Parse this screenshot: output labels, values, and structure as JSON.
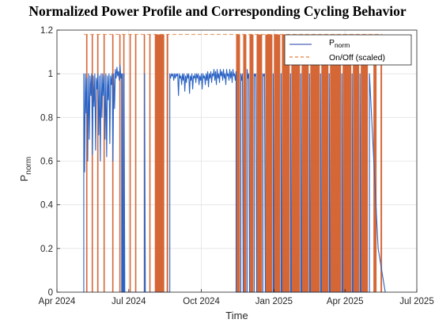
{
  "chart_data": {
    "type": "line",
    "title": "Normalized Power Profile and Corresponding Cycling Behavior",
    "xlabel": "Time",
    "ylabel_main": "P",
    "ylabel_sub": "norm",
    "xlim": [
      "2024-04-01",
      "2025-07-01"
    ],
    "ylim": [
      0,
      1.2
    ],
    "x_ticks": [
      {
        "date": "2024-04-01",
        "label": "Apr 2024"
      },
      {
        "date": "2024-07-01",
        "label": "Jul 2024"
      },
      {
        "date": "2024-10-01",
        "label": "Oct 2024"
      },
      {
        "date": "2025-01-01",
        "label": "Jan 2025"
      },
      {
        "date": "2025-04-01",
        "label": "Apr 2025"
      },
      {
        "date": "2025-07-01",
        "label": "Jul 2025"
      }
    ],
    "y_ticks": [
      {
        "value": 0,
        "label": "0"
      },
      {
        "value": 0.2,
        "label": "0.2"
      },
      {
        "value": 0.4,
        "label": "0.4"
      },
      {
        "value": 0.6,
        "label": "0.6"
      },
      {
        "value": 0.8,
        "label": "0.8"
      },
      {
        "value": 1,
        "label": "1"
      },
      {
        "value": 1.2,
        "label": "1.2"
      }
    ],
    "grid": true,
    "legend": {
      "placement": "top-right",
      "entries": [
        {
          "main": "P",
          "sub": "norm",
          "style": "solid",
          "color": "#4a63b8"
        },
        {
          "main": "On/Off (scaled)",
          "sub": "",
          "style": "dashed",
          "color": "#e0803a"
        }
      ]
    },
    "series": [
      {
        "id": "pnorm",
        "color": "#2b63c4",
        "points": [
          [
            "2024-05-05",
            0
          ],
          [
            "2024-05-05",
            1.0
          ],
          [
            "2024-05-06",
            0.55
          ],
          [
            "2024-05-07",
            1.0
          ],
          [
            "2024-05-08",
            0.82
          ],
          [
            "2024-05-09",
            0.98
          ],
          [
            "2024-05-10",
            0.6
          ],
          [
            "2024-05-11",
            1.0
          ],
          [
            "2024-05-12",
            0.7
          ],
          [
            "2024-05-13",
            0.99
          ],
          [
            "2024-05-14",
            0.9
          ],
          [
            "2024-05-15",
            1.0
          ],
          [
            "2024-05-16",
            0.63
          ],
          [
            "2024-05-17",
            0.99
          ],
          [
            "2024-05-18",
            0.85
          ],
          [
            "2024-05-19",
            1.0
          ],
          [
            "2024-05-20",
            0.65
          ],
          [
            "2024-05-21",
            0.98
          ],
          [
            "2024-05-22",
            0.93
          ],
          [
            "2024-05-23",
            1.0
          ],
          [
            "2024-05-24",
            0.72
          ],
          [
            "2024-05-25",
            0.99
          ],
          [
            "2024-05-26",
            0.6
          ],
          [
            "2024-05-27",
            1.0
          ],
          [
            "2024-05-28",
            0.8
          ],
          [
            "2024-05-29",
            1.0
          ],
          [
            "2024-05-30",
            0.9
          ],
          [
            "2024-05-31",
            0.99
          ],
          [
            "2024-06-01",
            0.7
          ],
          [
            "2024-06-02",
            1.0
          ],
          [
            "2024-06-03",
            0.62
          ],
          [
            "2024-06-04",
            0.99
          ],
          [
            "2024-06-05",
            0.88
          ],
          [
            "2024-06-06",
            1.0
          ],
          [
            "2024-06-07",
            0.68
          ],
          [
            "2024-06-08",
            0.99
          ],
          [
            "2024-06-09",
            0.95
          ],
          [
            "2024-06-10",
            1.0
          ],
          [
            "2024-06-11",
            0.6
          ],
          [
            "2024-06-12",
            1.0
          ],
          [
            "2024-06-13",
            0.84
          ],
          [
            "2024-06-14",
            1.02
          ],
          [
            "2024-06-15",
            0.98
          ],
          [
            "2024-06-16",
            1.03
          ],
          [
            "2024-06-17",
            0.99
          ],
          [
            "2024-06-18",
            1.01
          ],
          [
            "2024-06-19",
            0.97
          ],
          [
            "2024-06-20",
            1.04
          ],
          [
            "2024-06-21",
            0.98
          ],
          [
            "2024-06-22",
            1.0
          ],
          [
            "2024-06-22",
            0
          ],
          [
            "2024-06-23",
            0
          ],
          [
            "2024-06-23",
            1.0
          ],
          [
            "2024-06-24",
            0
          ],
          [
            "2024-06-25",
            0
          ],
          [
            "2024-06-25",
            1.0
          ],
          [
            "2024-06-26",
            0
          ],
          [
            "2024-07-21",
            0
          ],
          [
            "2024-07-21",
            1.0
          ],
          [
            "2024-07-22",
            0
          ],
          [
            "2024-08-22",
            0
          ],
          [
            "2024-08-22",
            1.0
          ],
          [
            "2024-08-23",
            0.98
          ],
          [
            "2024-08-24",
            1.0
          ],
          [
            "2024-08-25",
            0.99
          ],
          [
            "2024-08-26",
            1.0
          ],
          [
            "2024-08-27",
            0.97
          ],
          [
            "2024-08-28",
            1.0
          ],
          [
            "2024-08-29",
            0.98
          ],
          [
            "2024-08-30",
            1.0
          ],
          [
            "2024-08-31",
            0.99
          ],
          [
            "2024-09-01",
            1.0
          ],
          [
            "2024-09-02",
            0.9
          ],
          [
            "2024-09-03",
            1.0
          ],
          [
            "2024-09-04",
            0.98
          ],
          [
            "2024-09-05",
            0.99
          ],
          [
            "2024-09-06",
            0.95
          ],
          [
            "2024-09-07",
            1.0
          ],
          [
            "2024-09-08",
            0.97
          ],
          [
            "2024-09-09",
            1.0
          ],
          [
            "2024-09-10",
            0.92
          ],
          [
            "2024-09-11",
            0.99
          ],
          [
            "2024-09-12",
            0.96
          ],
          [
            "2024-09-13",
            1.0
          ],
          [
            "2024-09-14",
            0.98
          ],
          [
            "2024-09-15",
            1.0
          ],
          [
            "2024-09-16",
            0.91
          ],
          [
            "2024-09-17",
            0.99
          ],
          [
            "2024-09-18",
            0.97
          ],
          [
            "2024-09-19",
            1.0
          ],
          [
            "2024-09-20",
            0.93
          ],
          [
            "2024-09-21",
            0.99
          ],
          [
            "2024-09-22",
            0.98
          ],
          [
            "2024-09-23",
            1.0
          ],
          [
            "2024-09-24",
            0.96
          ],
          [
            "2024-09-25",
            1.0
          ],
          [
            "2024-09-26",
            0.98
          ],
          [
            "2024-09-27",
            1.0
          ],
          [
            "2024-09-28",
            0.95
          ],
          [
            "2024-09-29",
            0.99
          ],
          [
            "2024-09-30",
            0.97
          ],
          [
            "2024-10-01",
            1.0
          ],
          [
            "2024-10-02",
            0.93
          ],
          [
            "2024-10-03",
            1.0
          ],
          [
            "2024-10-04",
            0.98
          ],
          [
            "2024-10-05",
            0.99
          ],
          [
            "2024-10-06",
            0.95
          ],
          [
            "2024-10-07",
            1.0
          ],
          [
            "2024-10-08",
            0.97
          ],
          [
            "2024-10-09",
            1.01
          ],
          [
            "2024-10-10",
            0.94
          ],
          [
            "2024-10-11",
            1.0
          ],
          [
            "2024-10-12",
            0.98
          ],
          [
            "2024-10-13",
            1.01
          ],
          [
            "2024-10-14",
            0.96
          ],
          [
            "2024-10-15",
            1.0
          ],
          [
            "2024-10-16",
            0.99
          ],
          [
            "2024-10-17",
            1.02
          ],
          [
            "2024-10-18",
            0.97
          ],
          [
            "2024-10-19",
            1.01
          ],
          [
            "2024-10-20",
            0.95
          ],
          [
            "2024-10-21",
            1.02
          ],
          [
            "2024-10-22",
            0.98
          ],
          [
            "2024-10-23",
            1.0
          ],
          [
            "2024-10-24",
            0.96
          ],
          [
            "2024-10-25",
            1.02
          ],
          [
            "2024-10-26",
            0.99
          ],
          [
            "2024-10-27",
            1.01
          ],
          [
            "2024-10-28",
            0.97
          ],
          [
            "2024-10-29",
            1.02
          ],
          [
            "2024-10-30",
            0.98
          ],
          [
            "2024-10-31",
            1.0
          ],
          [
            "2024-11-01",
            0.95
          ],
          [
            "2024-11-02",
            1.02
          ],
          [
            "2024-11-03",
            0.99
          ],
          [
            "2024-11-04",
            1.0
          ],
          [
            "2024-11-05",
            0.97
          ],
          [
            "2024-11-06",
            1.02
          ],
          [
            "2024-11-07",
            0.98
          ],
          [
            "2024-11-08",
            1.01
          ],
          [
            "2024-11-09",
            0.96
          ],
          [
            "2024-11-10",
            1.02
          ],
          [
            "2024-11-11",
            0.99
          ],
          [
            "2024-11-12",
            1.0
          ],
          [
            "2024-11-13",
            0.97
          ],
          [
            "2024-11-14",
            1.01
          ],
          [
            "2024-11-14",
            0
          ],
          [
            "2024-11-20",
            0
          ],
          [
            "2024-11-20",
            1.0
          ],
          [
            "2024-11-21",
            0.97
          ],
          [
            "2024-11-22",
            1.0
          ],
          [
            "2024-11-23",
            0
          ],
          [
            "2024-11-28",
            0
          ],
          [
            "2024-11-28",
            1.02
          ],
          [
            "2024-11-29",
            0.98
          ],
          [
            "2024-11-30",
            1.0
          ],
          [
            "2024-12-01",
            0
          ],
          [
            "2024-12-07",
            0
          ],
          [
            "2024-12-07",
            1.0
          ],
          [
            "2024-12-08",
            0.99
          ],
          [
            "2024-12-09",
            1.0
          ],
          [
            "2024-12-10",
            0
          ],
          [
            "2024-12-18",
            0
          ],
          [
            "2024-12-18",
            1.0
          ],
          [
            "2024-12-19",
            0.99
          ],
          [
            "2024-12-20",
            1.0
          ],
          [
            "2024-12-21",
            0
          ],
          [
            "2024-12-31",
            0
          ],
          [
            "2024-12-31",
            1.0
          ],
          [
            "2025-01-01",
            0
          ],
          [
            "2025-01-10",
            0
          ],
          [
            "2025-01-10",
            1.0
          ],
          [
            "2025-01-11",
            0
          ],
          [
            "2025-01-22",
            0
          ],
          [
            "2025-01-22",
            1.0
          ],
          [
            "2025-01-23",
            0
          ],
          [
            "2025-02-04",
            0
          ],
          [
            "2025-02-04",
            1.0
          ],
          [
            "2025-02-05",
            0
          ],
          [
            "2025-02-15",
            0
          ],
          [
            "2025-02-15",
            1.0
          ],
          [
            "2025-02-16",
            0
          ],
          [
            "2025-03-01",
            0
          ],
          [
            "2025-03-01",
            1.0
          ],
          [
            "2025-03-02",
            0
          ],
          [
            "2025-03-12",
            0
          ],
          [
            "2025-03-12",
            1.0
          ],
          [
            "2025-03-13",
            0
          ],
          [
            "2025-03-28",
            0
          ],
          [
            "2025-03-28",
            1.0
          ],
          [
            "2025-03-29",
            0
          ],
          [
            "2025-04-10",
            0
          ],
          [
            "2025-04-10",
            1.0
          ],
          [
            "2025-04-11",
            0
          ],
          [
            "2025-04-20",
            0
          ],
          [
            "2025-04-20",
            1.0
          ],
          [
            "2025-04-21",
            0
          ],
          [
            "2025-05-02",
            0
          ],
          [
            "2025-05-02",
            1.0
          ],
          [
            "2025-05-13",
            0.2
          ],
          [
            "2025-05-22",
            0
          ]
        ]
      },
      {
        "id": "onoff",
        "color": "#d35f2c",
        "on_value": 1.18,
        "on_periods": [
          [
            "2024-05-08",
            "2024-05-08"
          ],
          [
            "2024-05-15",
            "2024-05-15"
          ],
          [
            "2024-05-22",
            "2024-05-22"
          ],
          [
            "2024-05-30",
            "2024-05-30"
          ],
          [
            "2024-06-10",
            "2024-06-10"
          ],
          [
            "2024-06-19",
            "2024-06-19"
          ],
          [
            "2024-06-24",
            "2024-06-25"
          ],
          [
            "2024-07-02",
            "2024-07-02"
          ],
          [
            "2024-07-09",
            "2024-07-09"
          ],
          [
            "2024-07-20",
            "2024-07-21"
          ],
          [
            "2024-07-27",
            "2024-07-27"
          ],
          [
            "2024-08-03",
            "2024-08-15"
          ],
          [
            "2024-08-18",
            "2024-08-20"
          ],
          [
            "2024-11-14",
            "2024-11-19"
          ],
          [
            "2024-11-23",
            "2024-11-27"
          ],
          [
            "2024-12-01",
            "2024-12-06"
          ],
          [
            "2024-12-10",
            "2024-12-17"
          ],
          [
            "2024-12-21",
            "2024-12-30"
          ],
          [
            "2025-01-01",
            "2025-01-09"
          ],
          [
            "2025-01-11",
            "2025-01-21"
          ],
          [
            "2025-01-23",
            "2025-02-03"
          ],
          [
            "2025-02-05",
            "2025-02-14"
          ],
          [
            "2025-02-16",
            "2025-02-28"
          ],
          [
            "2025-03-02",
            "2025-03-11"
          ],
          [
            "2025-03-13",
            "2025-03-27"
          ],
          [
            "2025-03-29",
            "2025-04-09"
          ],
          [
            "2025-04-11",
            "2025-04-19"
          ],
          [
            "2025-04-21",
            "2025-04-30"
          ],
          [
            "2025-05-07",
            "2025-05-11"
          ],
          [
            "2025-05-16",
            "2025-05-18"
          ]
        ]
      }
    ]
  }
}
